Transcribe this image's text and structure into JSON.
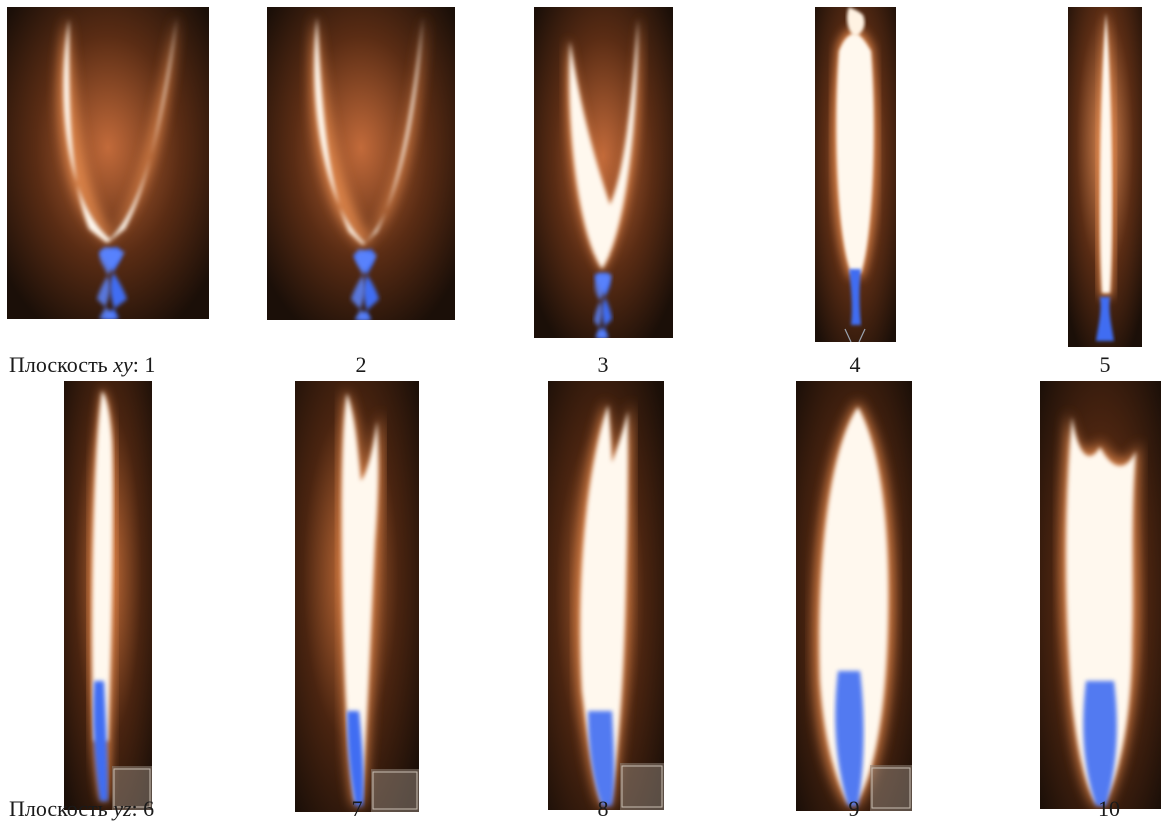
{
  "row_xy": {
    "prefix": "Плоскость",
    "axis": "xy",
    "colon": ":",
    "labels": [
      "1",
      "2",
      "3",
      "4",
      "5"
    ]
  },
  "row_yz": {
    "prefix": "Плоскость",
    "axis": "yz",
    "colon": ":",
    "labels": [
      "6",
      "7",
      "8",
      "9",
      "10"
    ]
  },
  "colors": {
    "background": "#1b0f08",
    "glow": "#c8703a",
    "luminous": "#fff8ee",
    "blue_zone": "#3f6df2"
  }
}
